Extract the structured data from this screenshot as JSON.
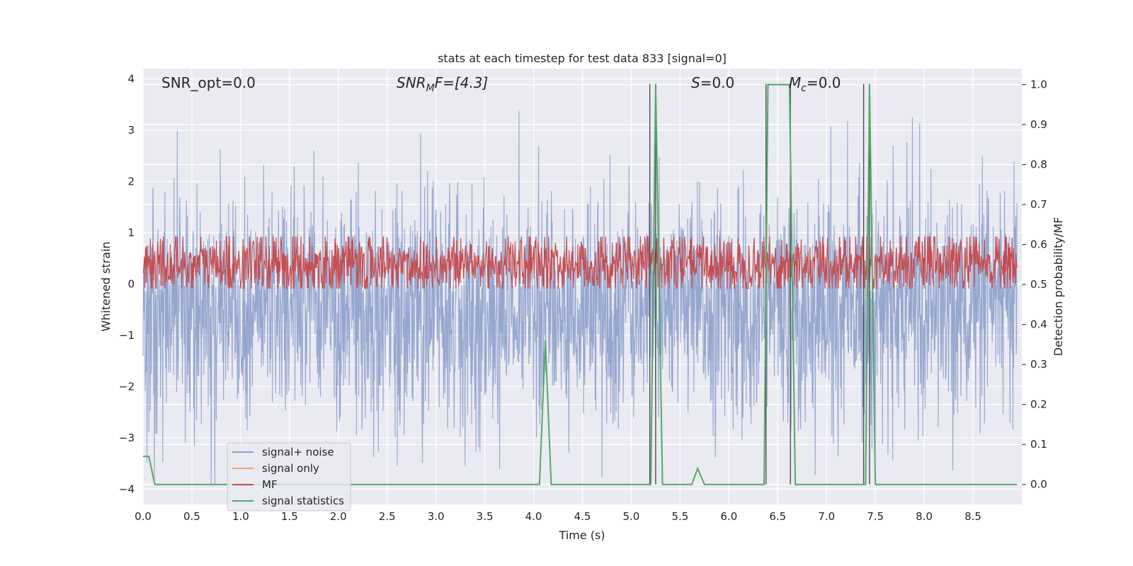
{
  "chart_data": {
    "type": "line",
    "title": "stats at each timestep for test data 833 [signal=0]",
    "xlabel": "Time (s)",
    "ylabel_left": "Whitened strain",
    "ylabel_right": "Detection probability/MF",
    "xlim": [
      0.0,
      9.0
    ],
    "ylim_left": [
      -4.3,
      4.2
    ],
    "ylim_right": [
      -0.05,
      1.04
    ],
    "x_ticks": [
      "0.0",
      "0.5",
      "1.0",
      "1.5",
      "2.0",
      "2.5",
      "3.0",
      "3.5",
      "4.0",
      "4.5",
      "5.0",
      "5.5",
      "6.0",
      "6.5",
      "7.0",
      "7.5",
      "8.0",
      "8.5"
    ],
    "y_left_ticks": [
      "4",
      "3",
      "2",
      "1",
      "0",
      "−1",
      "−2",
      "−3",
      "−4"
    ],
    "y_right_ticks": [
      "1.0",
      "0.9",
      "0.8",
      "0.7",
      "0.6",
      "0.5",
      "0.4",
      "0.3",
      "0.2",
      "0.1",
      "0.0"
    ],
    "grid": true,
    "legend_position": "lower-left",
    "annotations": {
      "snr_opt": "SNR_opt=0.0",
      "snr_mf_base": "SNR",
      "snr_mf_sub": "M",
      "snr_mf_rest": "F=[4.3]",
      "s_var": "S",
      "s_rest": "=0.0",
      "mc_base": "M",
      "mc_sub": "c",
      "mc_rest": "=0.0"
    },
    "series": [
      {
        "name": "signal+ noise",
        "color": "#8da0cb",
        "description_values": "whitened strain noise, roughly mean -0.5 with std ~1.1, clipped to [-3.9, 3.7]",
        "duration": 9.0,
        "mean": -0.5,
        "std": 1.1
      },
      {
        "name": "signal only",
        "color": "#f4a582",
        "values": []
      },
      {
        "name": "MF",
        "color": "#c44e52",
        "mean_right_axis": 0.55,
        "spread_right_axis": 0.05
      },
      {
        "name": "signal statistics",
        "color": "#55a868",
        "x": [
          0.0,
          0.06,
          0.12,
          4.06,
          4.12,
          4.18,
          4.5,
          4.6,
          5.18,
          5.2,
          5.25,
          5.32,
          5.62,
          5.68,
          5.75,
          6.36,
          6.4,
          6.46,
          6.58,
          6.62,
          6.68,
          7.36,
          7.4,
          7.44,
          7.5,
          8.95
        ],
        "y": [
          0.07,
          0.07,
          0.0,
          0.0,
          0.36,
          0.0,
          0.0,
          0.0,
          0.0,
          0.0,
          1.0,
          0.0,
          0.0,
          0.04,
          0.0,
          0.0,
          1.0,
          1.0,
          1.0,
          1.0,
          0.0,
          0.0,
          0.0,
          1.0,
          0.0,
          0.0
        ]
      }
    ],
    "vertical_lines_x": [
      5.19,
      5.25,
      6.38,
      6.63,
      7.38,
      7.44
    ]
  }
}
